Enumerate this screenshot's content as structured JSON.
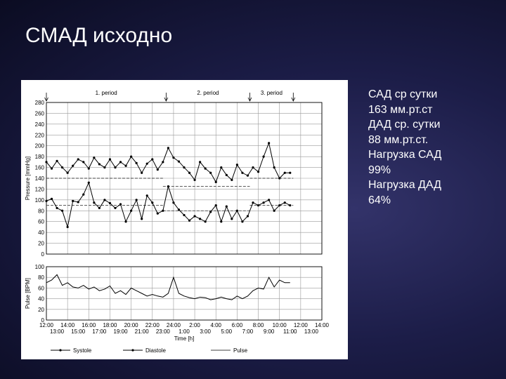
{
  "title": "СМАД исходно",
  "summary": [
    "САД ср сутки",
    "163 мм.рт.ст",
    "ДАД ср. сутки",
    "88 мм.рт.ст.",
    "Нагрузка САД",
    "99%",
    "Нагрузка ДАД",
    "64%"
  ],
  "colors": {
    "line": "#000000",
    "grid": "#9a9a9a",
    "threshold": "#444444"
  },
  "chart_data": [
    {
      "type": "line",
      "ylabel": "Pressure [mmHg]",
      "ylim": [
        0,
        280
      ],
      "yticks": [
        0,
        20,
        40,
        60,
        80,
        100,
        120,
        140,
        160,
        180,
        200,
        220,
        240,
        260,
        280
      ],
      "periods": [
        {
          "label": "1. period",
          "start_h": 0.0
        },
        {
          "label": "2. period",
          "start_h": 11.3
        },
        {
          "label": "3. period",
          "start_h": 19.2
        }
      ],
      "period_end_h": 23.3,
      "thresholds": [
        {
          "from_h": 0.0,
          "to_h": 11.0,
          "value": 140
        },
        {
          "from_h": 11.0,
          "to_h": 19.2,
          "value": 125
        },
        {
          "from_h": 19.2,
          "to_h": 23.3,
          "value": 140
        },
        {
          "from_h": 0.0,
          "to_h": 11.0,
          "value": 90
        },
        {
          "from_h": 11.0,
          "to_h": 19.2,
          "value": 80
        },
        {
          "from_h": 19.2,
          "to_h": 23.3,
          "value": 90
        }
      ],
      "series": [
        {
          "name": "Systole",
          "x": [
            0,
            0.5,
            1,
            1.5,
            2,
            2.5,
            3,
            3.5,
            4,
            4.5,
            5,
            5.5,
            6,
            6.5,
            7,
            7.5,
            8,
            8.5,
            9,
            9.5,
            10,
            10.5,
            11,
            11.5,
            12,
            12.5,
            13,
            13.5,
            14,
            14.5,
            15,
            15.5,
            16,
            16.5,
            17,
            17.5,
            18,
            18.5,
            19,
            19.5,
            20,
            20.5,
            21,
            21.5,
            22,
            22.5,
            23
          ],
          "values": [
            170,
            158,
            172,
            160,
            150,
            163,
            175,
            170,
            158,
            178,
            166,
            160,
            175,
            160,
            170,
            163,
            180,
            168,
            150,
            167,
            175,
            156,
            170,
            196,
            178,
            171,
            160,
            150,
            137,
            170,
            158,
            150,
            133,
            160,
            146,
            137,
            165,
            150,
            145,
            160,
            152,
            180,
            205,
            160,
            140,
            150,
            150
          ]
        },
        {
          "name": "Diastole",
          "x": [
            0,
            0.5,
            1,
            1.5,
            2,
            2.5,
            3,
            3.5,
            4,
            4.5,
            5,
            5.5,
            6,
            6.5,
            7,
            7.5,
            8,
            8.5,
            9,
            9.5,
            10,
            10.5,
            11,
            11.5,
            12,
            12.5,
            13,
            13.5,
            14,
            14.5,
            15,
            15.5,
            16,
            16.5,
            17,
            17.5,
            18,
            18.5,
            19,
            19.5,
            20,
            20.5,
            21,
            21.5,
            22,
            22.5,
            23
          ],
          "values": [
            98,
            102,
            85,
            80,
            50,
            98,
            96,
            110,
            132,
            95,
            85,
            100,
            94,
            85,
            92,
            60,
            80,
            100,
            65,
            108,
            95,
            75,
            80,
            125,
            95,
            82,
            72,
            62,
            70,
            65,
            60,
            78,
            90,
            60,
            88,
            65,
            80,
            60,
            70,
            95,
            90,
            95,
            100,
            80,
            90,
            95,
            90
          ]
        }
      ]
    },
    {
      "type": "line",
      "ylabel": "Pulse [BPM]",
      "ylim": [
        0,
        100
      ],
      "yticks": [
        0,
        20,
        40,
        60,
        80,
        100
      ],
      "series": [
        {
          "name": "Pulse",
          "x": [
            0,
            0.5,
            1,
            1.5,
            2,
            2.5,
            3,
            3.5,
            4,
            4.5,
            5,
            5.5,
            6,
            6.5,
            7,
            7.5,
            8,
            8.5,
            9,
            9.5,
            10,
            10.5,
            11,
            11.5,
            12,
            12.5,
            13,
            13.5,
            14,
            14.5,
            15,
            15.5,
            16,
            16.5,
            17,
            17.5,
            18,
            18.5,
            19,
            19.5,
            20,
            20.5,
            21,
            21.5,
            22,
            22.5,
            23
          ],
          "values": [
            70,
            75,
            85,
            65,
            70,
            62,
            60,
            65,
            58,
            62,
            55,
            58,
            64,
            50,
            55,
            48,
            60,
            55,
            50,
            45,
            48,
            45,
            43,
            50,
            80,
            50,
            45,
            42,
            40,
            43,
            42,
            38,
            40,
            43,
            40,
            38,
            45,
            40,
            45,
            55,
            60,
            58,
            80,
            62,
            75,
            70,
            70
          ]
        }
      ]
    }
  ],
  "time_axis": {
    "xlabel": "Time [h]",
    "xlim_h": [
      0,
      26
    ],
    "row1_labels": [
      "12:00",
      "14:00",
      "16:00",
      "18:00",
      "20:00",
      "22:00",
      "24:00",
      "2:00",
      "4:00",
      "6:00",
      "8:00",
      "10:00",
      "12:00",
      "14:00"
    ],
    "row2_labels": [
      "13:00",
      "15:00",
      "17:00",
      "19:00",
      "21:00",
      "23:00",
      "1:00",
      "3:00",
      "5:00",
      "7:00",
      "9:00",
      "11:00",
      "13:00"
    ]
  },
  "legend": [
    "Systole",
    "Diastole",
    "Pulse"
  ]
}
